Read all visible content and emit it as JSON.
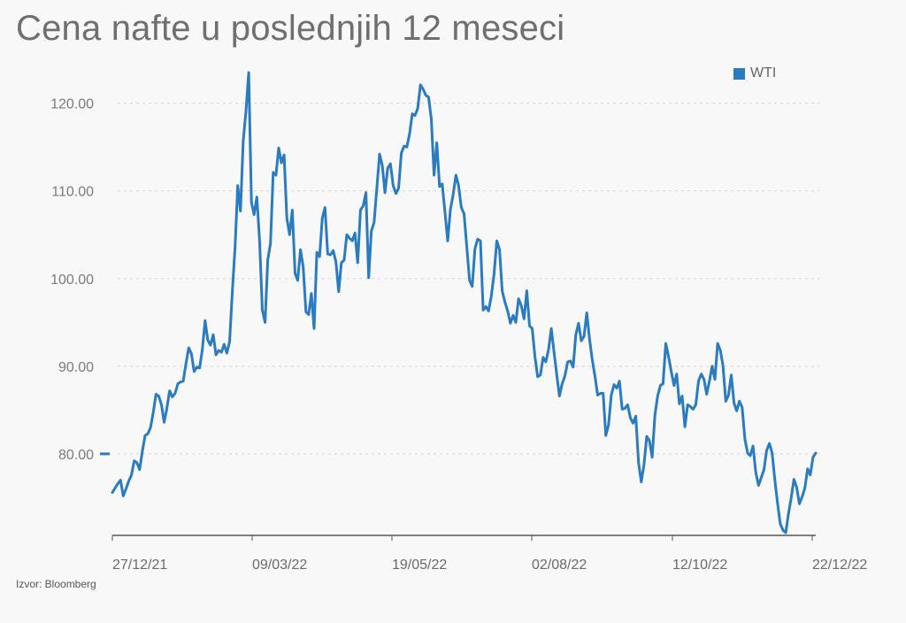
{
  "title": "Cena nafte u poslednjih 12 meseci",
  "source": "Izvor: Bloomberg",
  "colors": {
    "series": "#2a7bbf",
    "grid": "#d4d4d4",
    "axis": "#555555",
    "text": "#7a7a7a"
  },
  "chart_data": {
    "type": "line",
    "title": "Cena nafte u poslednjih 12 meseci",
    "xlabel": "",
    "ylabel": "",
    "ylim": [
      70.7,
      123.5
    ],
    "y_ticks": [
      "80.00",
      "90.00",
      "100.00",
      "110.00",
      "120.00"
    ],
    "x_tick_labels": [
      "27/12/21",
      "09/03/22",
      "19/05/22",
      "02/08/22",
      "12/10/22",
      "22/12/22"
    ],
    "grid": "horizontal dashed",
    "legend": "top-right",
    "series": [
      {
        "name": "WTI",
        "color": "#2a7bbf",
        "values": [
          75.6,
          76.1,
          76.6,
          77.0,
          75.2,
          76.0,
          76.9,
          77.6,
          79.2,
          79.0,
          78.2,
          80.3,
          82.1,
          82.3,
          83.0,
          84.7,
          86.8,
          86.6,
          85.6,
          83.6,
          85.2,
          87.2,
          86.5,
          86.9,
          88.0,
          88.2,
          88.3,
          90.3,
          92.1,
          91.4,
          89.4,
          89.9,
          89.8,
          91.9,
          95.2,
          93.0,
          92.4,
          93.6,
          91.3,
          91.8,
          91.6,
          92.5,
          91.5,
          92.8,
          98.5,
          103.6,
          110.6,
          107.7,
          115.7,
          119.1,
          123.5,
          108.7,
          107.3,
          109.3,
          104.3,
          96.4,
          95.0,
          102.1,
          104.0,
          112.1,
          111.8,
          114.9,
          113.2,
          114.1,
          106.9,
          105.0,
          107.8,
          100.6,
          99.8,
          103.3,
          101.3,
          96.2,
          95.9,
          98.3,
          94.3,
          103.0,
          102.5,
          106.9,
          108.1,
          102.8,
          102.7,
          103.2,
          101.9,
          98.5,
          101.8,
          102.1,
          105.0,
          104.6,
          104.3,
          105.2,
          101.8,
          107.8,
          108.3,
          109.8,
          100.1,
          105.4,
          106.4,
          110.3,
          114.2,
          112.9,
          109.8,
          112.6,
          113.1,
          110.6,
          109.7,
          110.3,
          114.3,
          115.1,
          115.0,
          116.5,
          118.8,
          118.6,
          119.4,
          122.1,
          121.6,
          120.9,
          120.7,
          118.2,
          111.8,
          115.5,
          110.5,
          110.8,
          107.6,
          104.3,
          107.9,
          109.6,
          111.8,
          110.6,
          108.1,
          107.4,
          103.6,
          99.8,
          99.1,
          103.4,
          104.5,
          104.3,
          96.4,
          96.8,
          96.3,
          98.0,
          100.5,
          104.3,
          103.3,
          98.6,
          97.3,
          96.3,
          94.9,
          95.8,
          95.0,
          97.7,
          96.9,
          95.4,
          98.6,
          94.6,
          94.3,
          91.1,
          88.8,
          89.0,
          91.0,
          90.5,
          91.9,
          94.3,
          91.6,
          89.0,
          86.6,
          88.0,
          88.9,
          90.5,
          90.6,
          89.9,
          93.6,
          94.9,
          92.9,
          93.4,
          96.1,
          93.2,
          90.8,
          88.9,
          86.7,
          86.9,
          86.9,
          82.1,
          83.3,
          86.7,
          87.9,
          87.5,
          88.3,
          85.1,
          85.2,
          85.6,
          84.1,
          83.5,
          84.3,
          79.0,
          76.8,
          78.8,
          82.0,
          81.5,
          79.6,
          84.4,
          86.6,
          87.8,
          88.0,
          92.6,
          91.1,
          89.4,
          87.8,
          89.1,
          85.7,
          86.6,
          83.1,
          85.6,
          85.4,
          85.1,
          85.6,
          88.3,
          89.1,
          88.5,
          86.8,
          88.3,
          90.0,
          88.5,
          92.6,
          91.8,
          90.0,
          86.0,
          86.7,
          89.0,
          85.8,
          84.9,
          86.0,
          85.3,
          81.7,
          80.1,
          79.8,
          80.9,
          77.9,
          76.4,
          77.3,
          78.2,
          80.4,
          81.2,
          80.1,
          77.0,
          74.3,
          72.0,
          71.3,
          71.0,
          73.2,
          75.0,
          77.1,
          76.2,
          74.3,
          75.1,
          76.1,
          78.3,
          77.6,
          79.6,
          80.1
        ]
      }
    ]
  }
}
